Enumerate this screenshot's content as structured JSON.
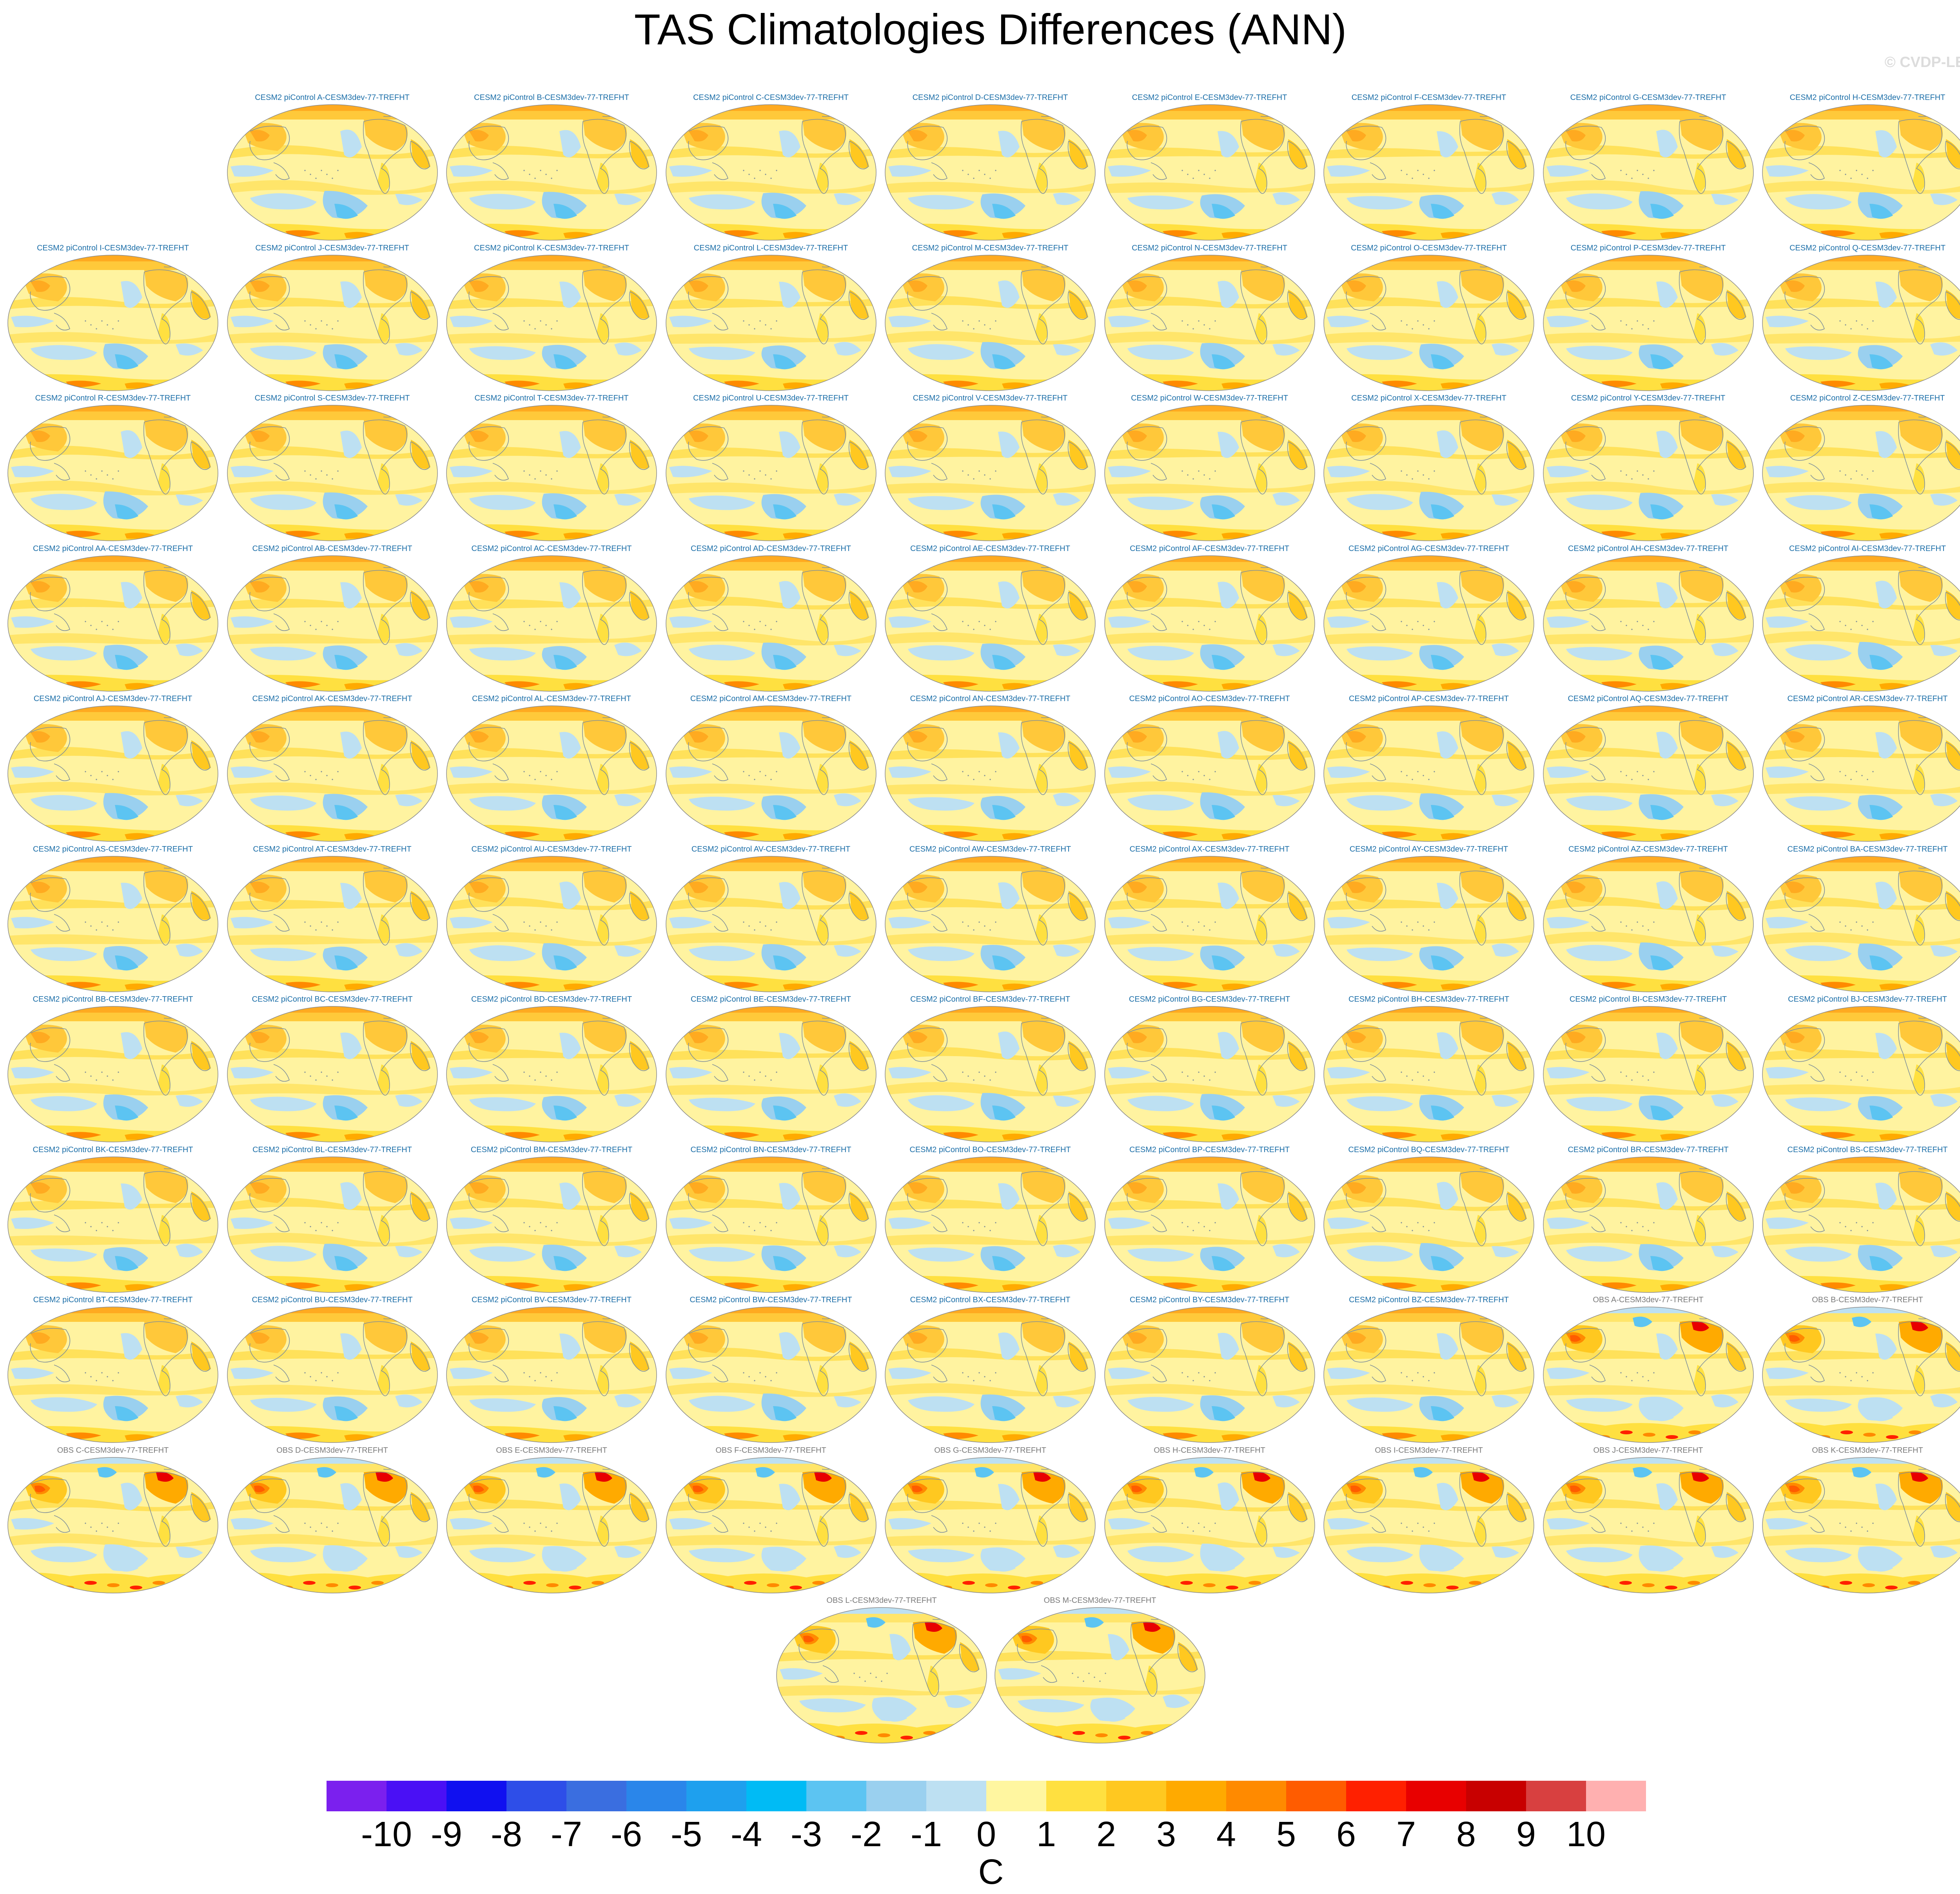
{
  "page": {
    "title": "TAS Climatologies Differences (ANN)",
    "watermark": "© CVDP-LE"
  },
  "colors": {
    "model_title": "#1b6ea8",
    "obs_title": "#7a7a7a",
    "coast": "#7f8f9a"
  },
  "panels": [
    {
      "title": "CESM2 piControl A-CESM3dev-77-TREFHT",
      "kind": "model"
    },
    {
      "title": "CESM2 piControl B-CESM3dev-77-TREFHT",
      "kind": "model"
    },
    {
      "title": "CESM2 piControl C-CESM3dev-77-TREFHT",
      "kind": "model"
    },
    {
      "title": "CESM2 piControl D-CESM3dev-77-TREFHT",
      "kind": "model"
    },
    {
      "title": "CESM2 piControl E-CESM3dev-77-TREFHT",
      "kind": "model"
    },
    {
      "title": "CESM2 piControl F-CESM3dev-77-TREFHT",
      "kind": "model"
    },
    {
      "title": "CESM2 piControl G-CESM3dev-77-TREFHT",
      "kind": "model"
    },
    {
      "title": "CESM2 piControl H-CESM3dev-77-TREFHT",
      "kind": "model"
    },
    {
      "title": "CESM2 piControl I-CESM3dev-77-TREFHT",
      "kind": "model"
    },
    {
      "title": "CESM2 piControl J-CESM3dev-77-TREFHT",
      "kind": "model"
    },
    {
      "title": "CESM2 piControl K-CESM3dev-77-TREFHT",
      "kind": "model"
    },
    {
      "title": "CESM2 piControl L-CESM3dev-77-TREFHT",
      "kind": "model"
    },
    {
      "title": "CESM2 piControl M-CESM3dev-77-TREFHT",
      "kind": "model"
    },
    {
      "title": "CESM2 piControl N-CESM3dev-77-TREFHT",
      "kind": "model"
    },
    {
      "title": "CESM2 piControl O-CESM3dev-77-TREFHT",
      "kind": "model"
    },
    {
      "title": "CESM2 piControl P-CESM3dev-77-TREFHT",
      "kind": "model"
    },
    {
      "title": "CESM2 piControl Q-CESM3dev-77-TREFHT",
      "kind": "model"
    },
    {
      "title": "CESM2 piControl R-CESM3dev-77-TREFHT",
      "kind": "model"
    },
    {
      "title": "CESM2 piControl S-CESM3dev-77-TREFHT",
      "kind": "model"
    },
    {
      "title": "CESM2 piControl T-CESM3dev-77-TREFHT",
      "kind": "model"
    },
    {
      "title": "CESM2 piControl U-CESM3dev-77-TREFHT",
      "kind": "model"
    },
    {
      "title": "CESM2 piControl V-CESM3dev-77-TREFHT",
      "kind": "model"
    },
    {
      "title": "CESM2 piControl W-CESM3dev-77-TREFHT",
      "kind": "model"
    },
    {
      "title": "CESM2 piControl X-CESM3dev-77-TREFHT",
      "kind": "model"
    },
    {
      "title": "CESM2 piControl Y-CESM3dev-77-TREFHT",
      "kind": "model"
    },
    {
      "title": "CESM2 piControl Z-CESM3dev-77-TREFHT",
      "kind": "model"
    },
    {
      "title": "CESM2 piControl AA-CESM3dev-77-TREFHT",
      "kind": "model"
    },
    {
      "title": "CESM2 piControl AB-CESM3dev-77-TREFHT",
      "kind": "model"
    },
    {
      "title": "CESM2 piControl AC-CESM3dev-77-TREFHT",
      "kind": "model"
    },
    {
      "title": "CESM2 piControl AD-CESM3dev-77-TREFHT",
      "kind": "model"
    },
    {
      "title": "CESM2 piControl AE-CESM3dev-77-TREFHT",
      "kind": "model"
    },
    {
      "title": "CESM2 piControl AF-CESM3dev-77-TREFHT",
      "kind": "model"
    },
    {
      "title": "CESM2 piControl AG-CESM3dev-77-TREFHT",
      "kind": "model"
    },
    {
      "title": "CESM2 piControl AH-CESM3dev-77-TREFHT",
      "kind": "model"
    },
    {
      "title": "CESM2 piControl AI-CESM3dev-77-TREFHT",
      "kind": "model"
    },
    {
      "title": "CESM2 piControl AJ-CESM3dev-77-TREFHT",
      "kind": "model"
    },
    {
      "title": "CESM2 piControl AK-CESM3dev-77-TREFHT",
      "kind": "model"
    },
    {
      "title": "CESM2 piControl AL-CESM3dev-77-TREFHT",
      "kind": "model"
    },
    {
      "title": "CESM2 piControl AM-CESM3dev-77-TREFHT",
      "kind": "model"
    },
    {
      "title": "CESM2 piControl AN-CESM3dev-77-TREFHT",
      "kind": "model"
    },
    {
      "title": "CESM2 piControl AO-CESM3dev-77-TREFHT",
      "kind": "model"
    },
    {
      "title": "CESM2 piControl AP-CESM3dev-77-TREFHT",
      "kind": "model"
    },
    {
      "title": "CESM2 piControl AQ-CESM3dev-77-TREFHT",
      "kind": "model"
    },
    {
      "title": "CESM2 piControl AR-CESM3dev-77-TREFHT",
      "kind": "model"
    },
    {
      "title": "CESM2 piControl AS-CESM3dev-77-TREFHT",
      "kind": "model"
    },
    {
      "title": "CESM2 piControl AT-CESM3dev-77-TREFHT",
      "kind": "model"
    },
    {
      "title": "CESM2 piControl AU-CESM3dev-77-TREFHT",
      "kind": "model"
    },
    {
      "title": "CESM2 piControl AV-CESM3dev-77-TREFHT",
      "kind": "model"
    },
    {
      "title": "CESM2 piControl AW-CESM3dev-77-TREFHT",
      "kind": "model"
    },
    {
      "title": "CESM2 piControl AX-CESM3dev-77-TREFHT",
      "kind": "model"
    },
    {
      "title": "CESM2 piControl AY-CESM3dev-77-TREFHT",
      "kind": "model"
    },
    {
      "title": "CESM2 piControl AZ-CESM3dev-77-TREFHT",
      "kind": "model"
    },
    {
      "title": "CESM2 piControl BA-CESM3dev-77-TREFHT",
      "kind": "model"
    },
    {
      "title": "CESM2 piControl BB-CESM3dev-77-TREFHT",
      "kind": "model"
    },
    {
      "title": "CESM2 piControl BC-CESM3dev-77-TREFHT",
      "kind": "model"
    },
    {
      "title": "CESM2 piControl BD-CESM3dev-77-TREFHT",
      "kind": "model"
    },
    {
      "title": "CESM2 piControl BE-CESM3dev-77-TREFHT",
      "kind": "model"
    },
    {
      "title": "CESM2 piControl BF-CESM3dev-77-TREFHT",
      "kind": "model"
    },
    {
      "title": "CESM2 piControl BG-CESM3dev-77-TREFHT",
      "kind": "model"
    },
    {
      "title": "CESM2 piControl BH-CESM3dev-77-TREFHT",
      "kind": "model"
    },
    {
      "title": "CESM2 piControl BI-CESM3dev-77-TREFHT",
      "kind": "model"
    },
    {
      "title": "CESM2 piControl BJ-CESM3dev-77-TREFHT",
      "kind": "model"
    },
    {
      "title": "CESM2 piControl BK-CESM3dev-77-TREFHT",
      "kind": "model"
    },
    {
      "title": "CESM2 piControl BL-CESM3dev-77-TREFHT",
      "kind": "model"
    },
    {
      "title": "CESM2 piControl BM-CESM3dev-77-TREFHT",
      "kind": "model"
    },
    {
      "title": "CESM2 piControl BN-CESM3dev-77-TREFHT",
      "kind": "model"
    },
    {
      "title": "CESM2 piControl BO-CESM3dev-77-TREFHT",
      "kind": "model"
    },
    {
      "title": "CESM2 piControl BP-CESM3dev-77-TREFHT",
      "kind": "model"
    },
    {
      "title": "CESM2 piControl BQ-CESM3dev-77-TREFHT",
      "kind": "model"
    },
    {
      "title": "CESM2 piControl BR-CESM3dev-77-TREFHT",
      "kind": "model"
    },
    {
      "title": "CESM2 piControl BS-CESM3dev-77-TREFHT",
      "kind": "model"
    },
    {
      "title": "CESM2 piControl BT-CESM3dev-77-TREFHT",
      "kind": "model"
    },
    {
      "title": "CESM2 piControl BU-CESM3dev-77-TREFHT",
      "kind": "model"
    },
    {
      "title": "CESM2 piControl BV-CESM3dev-77-TREFHT",
      "kind": "model"
    },
    {
      "title": "CESM2 piControl BW-CESM3dev-77-TREFHT",
      "kind": "model"
    },
    {
      "title": "CESM2 piControl BX-CESM3dev-77-TREFHT",
      "kind": "model"
    },
    {
      "title": "CESM2 piControl BY-CESM3dev-77-TREFHT",
      "kind": "model"
    },
    {
      "title": "CESM2 piControl BZ-CESM3dev-77-TREFHT",
      "kind": "model"
    },
    {
      "title": "OBS A-CESM3dev-77-TREFHT",
      "kind": "obs"
    },
    {
      "title": "OBS B-CESM3dev-77-TREFHT",
      "kind": "obs"
    },
    {
      "title": "OBS C-CESM3dev-77-TREFHT",
      "kind": "obs"
    },
    {
      "title": "OBS D-CESM3dev-77-TREFHT",
      "kind": "obs"
    },
    {
      "title": "OBS E-CESM3dev-77-TREFHT",
      "kind": "obs"
    },
    {
      "title": "OBS F-CESM3dev-77-TREFHT",
      "kind": "obs"
    },
    {
      "title": "OBS G-CESM3dev-77-TREFHT",
      "kind": "obs"
    },
    {
      "title": "OBS H-CESM3dev-77-TREFHT",
      "kind": "obs"
    },
    {
      "title": "OBS I-CESM3dev-77-TREFHT",
      "kind": "obs"
    },
    {
      "title": "OBS J-CESM3dev-77-TREFHT",
      "kind": "obs"
    },
    {
      "title": "OBS K-CESM3dev-77-TREFHT",
      "kind": "obs"
    },
    {
      "title": "OBS L-CESM3dev-77-TREFHT",
      "kind": "obs"
    },
    {
      "title": "OBS M-CESM3dev-77-TREFHT",
      "kind": "obs"
    }
  ],
  "colorbar": {
    "unit": "C",
    "labels": [
      "-10",
      "-9",
      "-8",
      "-7",
      "-6",
      "-5",
      "-4",
      "-3",
      "-2",
      "-1",
      "0",
      "1",
      "2",
      "3",
      "4",
      "5",
      "6",
      "7",
      "8",
      "9",
      "10"
    ],
    "colors": [
      "#7b20ee",
      "#4a10f5",
      "#1010f0",
      "#2e4ee8",
      "#3a6ee0",
      "#2a86ea",
      "#1ea0ee",
      "#00bbf5",
      "#5cc4f2",
      "#9ad0ef",
      "#bde0f2",
      "#fff6a0",
      "#ffe040",
      "#ffc820",
      "#ffaa00",
      "#ff8a00",
      "#ff5c00",
      "#ff2000",
      "#e80000",
      "#c80000",
      "#d84040",
      "#ffb0b0"
    ]
  }
}
